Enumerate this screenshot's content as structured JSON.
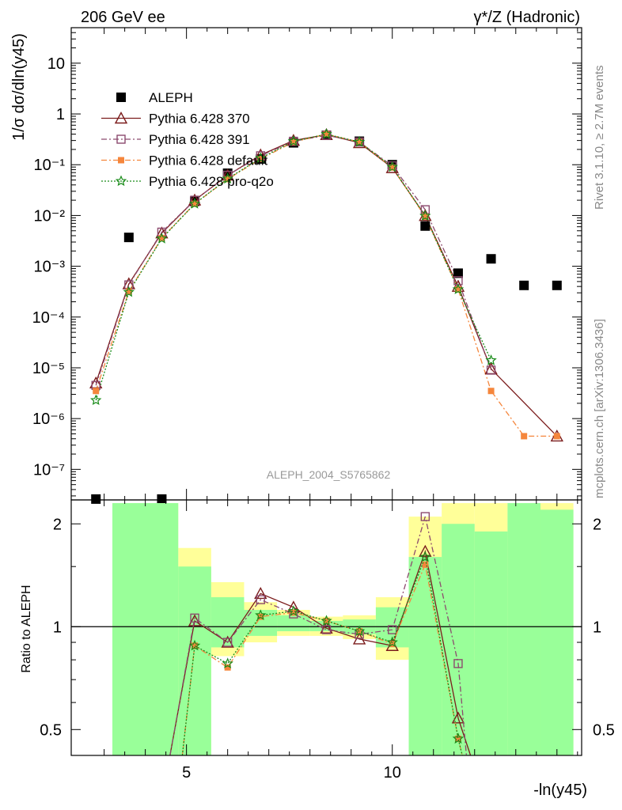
{
  "header": {
    "left_title": "206 GeV ee",
    "right_title": "γ*/Z (Hadronic)",
    "side_label_1": "Rivet 3.1.10, ≥ 2.7M events",
    "side_label_2": "mcplots.cern.ch [arXiv:1306.3436]",
    "analysis_id": "ALEPH_2004_S5765862"
  },
  "chart_data": [
    {
      "type": "scatter",
      "title": "",
      "ylabel": "1/σ dσ/dln(y45)",
      "xlabel": "-ln(y45)",
      "yscale": "log",
      "xlim": [
        2.2,
        14.6
      ],
      "ylim": [
        2.5e-08,
        50
      ],
      "y_ticks": [
        "10⁻⁷",
        "10⁻⁶",
        "10⁻⁵",
        "10⁻⁴",
        "10⁻³",
        "10⁻²",
        "10⁻¹",
        "1",
        "10"
      ],
      "legend_position": "top-left",
      "series": [
        {
          "name": "ALEPH",
          "color": "#000000",
          "marker": "square",
          "x": [
            2.8,
            3.6,
            4.4,
            5.2,
            6.0,
            6.8,
            7.6,
            8.4,
            9.2,
            10.0,
            10.8,
            11.6,
            12.4,
            13.2,
            14.0
          ],
          "y": [
            2.6e-08,
            0.0037,
            2.6e-08,
            0.019,
            0.068,
            0.13,
            0.27,
            0.38,
            0.29,
            0.1,
            0.0062,
            0.00073,
            0.0014,
            0.00042,
            0.00042
          ]
        },
        {
          "name": "Pythia 6.428 370",
          "color": "#7b1c1c",
          "marker": "triangle",
          "x": [
            2.8,
            3.6,
            4.4,
            5.2,
            6.0,
            6.8,
            7.6,
            8.4,
            9.2,
            10.0,
            10.8,
            11.6,
            12.4,
            14.0
          ],
          "y": [
            5e-06,
            0.00045,
            0.0045,
            0.02,
            0.062,
            0.155,
            0.3,
            0.39,
            0.27,
            0.087,
            0.0099,
            0.0004,
            9.5e-06,
            4.5e-07
          ]
        },
        {
          "name": "Pythia 6.428 391",
          "color": "#8c4a6e",
          "marker": "open-square",
          "x": [
            2.8,
            3.6,
            4.4,
            5.2,
            6.0,
            6.8,
            7.6,
            8.4,
            9.2,
            10.0,
            10.8,
            11.6,
            12.4
          ],
          "y": [
            4.5e-06,
            0.00043,
            0.0047,
            0.02,
            0.062,
            0.15,
            0.29,
            0.38,
            0.28,
            0.095,
            0.013,
            0.00052,
            9e-06
          ]
        },
        {
          "name": "Pythia 6.428 default",
          "color": "#f5863c",
          "marker": "filled-square",
          "x": [
            2.8,
            3.6,
            4.4,
            5.2,
            6.0,
            6.8,
            7.6,
            8.4,
            9.2,
            10.0,
            10.8,
            11.6,
            12.4,
            13.2,
            14.0
          ],
          "y": [
            3.5e-06,
            0.00032,
            0.0036,
            0.017,
            0.052,
            0.13,
            0.28,
            0.4,
            0.28,
            0.088,
            0.0095,
            0.00035,
            3.5e-06,
            4.5e-07,
            4.5e-07
          ]
        },
        {
          "name": "Pythia 6.428 pro-q2o",
          "color": "#1a8c1a",
          "marker": "star",
          "x": [
            2.8,
            3.6,
            4.4,
            5.2,
            6.0,
            6.8,
            7.6,
            8.4,
            9.2,
            10.0,
            10.8,
            11.6,
            12.4
          ],
          "y": [
            2.3e-06,
            0.00031,
            0.0035,
            0.017,
            0.053,
            0.135,
            0.29,
            0.4,
            0.28,
            0.09,
            0.0098,
            0.00035,
            1.4e-05
          ]
        }
      ]
    },
    {
      "type": "scatter",
      "title": "",
      "ylabel": "Ratio to ALEPH",
      "xlabel": "-ln(y45)",
      "yscale": "log",
      "xlim": [
        2.2,
        14.6
      ],
      "ylim": [
        0.42,
        2.35
      ],
      "y_ticks": [
        "0.5",
        "1",
        "2"
      ],
      "x_ticks": [
        "5",
        "10"
      ],
      "bands": [
        {
          "x0": 3.2,
          "x1": 4.8,
          "yellow": [
            0.4,
            2.3
          ],
          "green": [
            0.4,
            2.3
          ]
        },
        {
          "x0": 4.8,
          "x1": 5.6,
          "yellow": [
            0.4,
            1.7
          ],
          "green": [
            0.4,
            1.5
          ]
        },
        {
          "x0": 5.6,
          "x1": 6.4,
          "yellow": [
            0.82,
            1.35
          ],
          "green": [
            0.87,
            1.22
          ]
        },
        {
          "x0": 6.4,
          "x1": 7.2,
          "yellow": [
            0.9,
            1.18
          ],
          "green": [
            0.94,
            1.12
          ]
        },
        {
          "x0": 7.2,
          "x1": 8.0,
          "yellow": [
            0.94,
            1.12
          ],
          "green": [
            0.97,
            1.08
          ]
        },
        {
          "x0": 8.0,
          "x1": 8.8,
          "yellow": [
            0.94,
            1.07
          ],
          "green": [
            0.97,
            1.04
          ]
        },
        {
          "x0": 8.8,
          "x1": 9.6,
          "yellow": [
            0.92,
            1.08
          ],
          "green": [
            0.95,
            1.05
          ]
        },
        {
          "x0": 9.6,
          "x1": 10.4,
          "yellow": [
            0.8,
            1.22
          ],
          "green": [
            0.87,
            1.14
          ]
        },
        {
          "x0": 10.4,
          "x1": 11.2,
          "yellow": [
            0.4,
            2.1
          ],
          "green": [
            0.4,
            1.6
          ]
        },
        {
          "x0": 11.2,
          "x1": 12.0,
          "yellow": [
            0.4,
            2.3
          ],
          "green": [
            0.4,
            2.0
          ]
        },
        {
          "x0": 12.0,
          "x1": 12.8,
          "yellow": [
            0.4,
            2.3
          ],
          "green": [
            0.4,
            1.9
          ]
        },
        {
          "x0": 12.8,
          "x1": 13.6,
          "yellow": [
            0.4,
            2.3
          ],
          "green": [
            0.4,
            2.3
          ]
        },
        {
          "x0": 13.6,
          "x1": 14.4,
          "yellow": [
            0.4,
            2.3
          ],
          "green": [
            0.4,
            2.2
          ]
        }
      ],
      "series": [
        {
          "name": "Pythia 6.428 370",
          "x": [
            4.6,
            5.2,
            6.0,
            6.8,
            7.6,
            8.4,
            9.2,
            10.0,
            10.8,
            11.6,
            11.9
          ],
          "y": [
            0.42,
            1.04,
            0.9,
            1.25,
            1.14,
            0.99,
            0.92,
            0.88,
            1.66,
            0.54,
            0.42
          ]
        },
        {
          "name": "Pythia 6.428 391",
          "x": [
            4.6,
            5.2,
            6.0,
            6.8,
            7.6,
            8.4,
            9.2,
            10.0,
            10.8,
            11.6,
            11.8
          ],
          "y": [
            0.42,
            1.06,
            0.9,
            1.2,
            1.09,
            0.98,
            0.95,
            0.98,
            2.1,
            0.78,
            0.42
          ]
        },
        {
          "name": "Pythia 6.428 default",
          "x": [
            4.9,
            5.2,
            6.0,
            6.8,
            7.6,
            8.4,
            9.2,
            10.0,
            10.8,
            11.6,
            11.7
          ],
          "y": [
            0.42,
            0.88,
            0.76,
            1.07,
            1.1,
            1.04,
            0.97,
            0.89,
            1.52,
            0.47,
            0.42
          ]
        },
        {
          "name": "Pythia 6.428 pro-q2o",
          "x": [
            4.9,
            5.2,
            6.0,
            6.8,
            7.6,
            8.4,
            9.2,
            10.0,
            10.8,
            11.6,
            11.7
          ],
          "y": [
            0.42,
            0.88,
            0.78,
            1.08,
            1.11,
            1.04,
            0.97,
            0.9,
            1.6,
            0.47,
            0.42
          ]
        }
      ]
    }
  ]
}
